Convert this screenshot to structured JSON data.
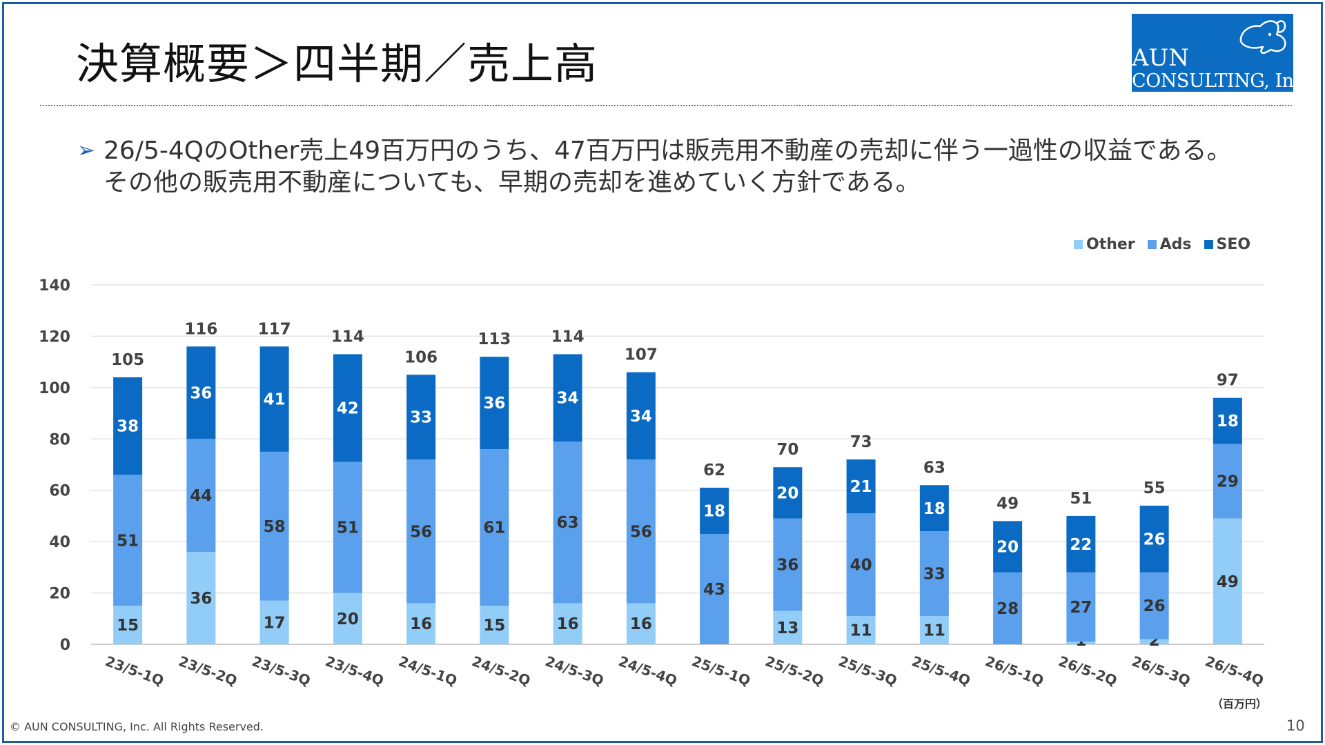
{
  "slide": {
    "title": "決算概要＞四半期／売上高",
    "bullet_marker": "➢",
    "note_line1": "26/5-4QのOther売上49百万円のうち、47百万円は販売用不動産の売却に伴う一過性の収益である。",
    "note_line2": "その他の販売用不動産についても、早期の売却を進めていく方針である。",
    "unit": "（百万円）",
    "footer": "© AUN CONSULTING, Inc. All Rights Reserved.",
    "page_number": "10"
  },
  "logo": {
    "line1": "AUN",
    "line2": "CONSULTING, Inc.",
    "icon": "dog-icon"
  },
  "chart_data": {
    "type": "bar",
    "stacked": true,
    "categories": [
      "23/5-1Q",
      "23/5-2Q",
      "23/5-3Q",
      "23/5-4Q",
      "24/5-1Q",
      "24/5-2Q",
      "24/5-3Q",
      "24/5-4Q",
      "25/5-1Q",
      "25/5-2Q",
      "25/5-3Q",
      "25/5-4Q",
      "26/5-1Q",
      "26/5-2Q",
      "26/5-3Q",
      "26/5-4Q"
    ],
    "series": [
      {
        "name": "Other",
        "color": "#92cdf7",
        "values": [
          15,
          36,
          17,
          20,
          16,
          15,
          16,
          16,
          0,
          13,
          11,
          11,
          0,
          1,
          2,
          49
        ]
      },
      {
        "name": "Ads",
        "color": "#5aa0ec",
        "values": [
          51,
          44,
          58,
          51,
          56,
          61,
          63,
          56,
          43,
          36,
          40,
          33,
          28,
          27,
          26,
          29
        ]
      },
      {
        "name": "SEO",
        "color": "#0b6bc4",
        "values": [
          38,
          36,
          41,
          42,
          33,
          36,
          34,
          34,
          18,
          20,
          21,
          18,
          20,
          22,
          26,
          18
        ]
      }
    ],
    "totals": [
      105,
      116,
      117,
      114,
      106,
      113,
      114,
      107,
      62,
      70,
      73,
      63,
      49,
      51,
      55,
      97
    ],
    "y_ticks": [
      "0",
      "20",
      "40",
      "60",
      "80",
      "100",
      "120",
      "140"
    ],
    "ylim": [
      0,
      140
    ],
    "grid": true,
    "legend_position": "top-right"
  }
}
